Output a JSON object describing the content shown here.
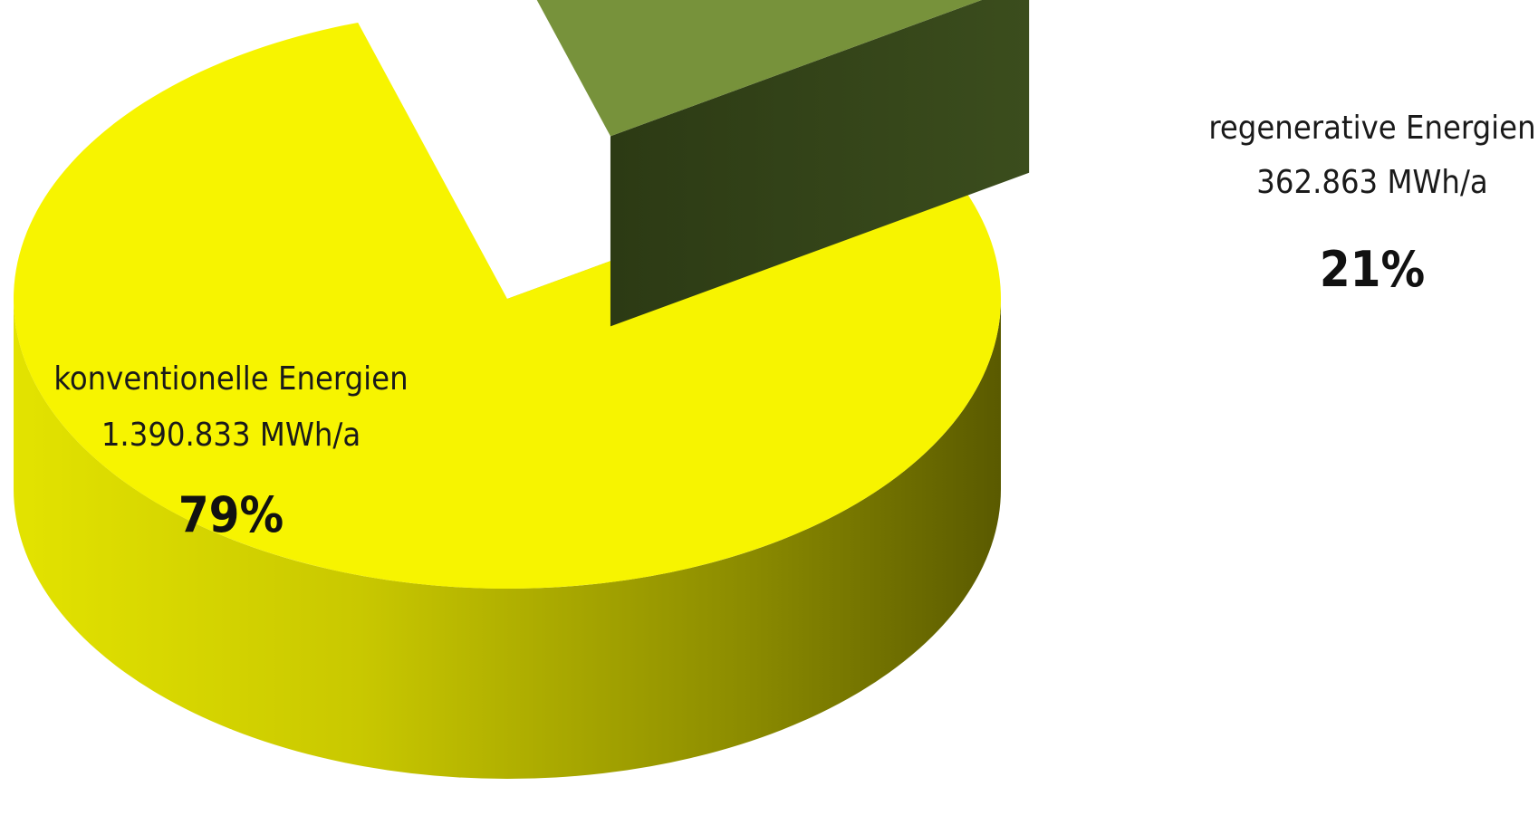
{
  "chart_data": {
    "type": "pie",
    "style": "3d-exploded",
    "unit": "MWh/a",
    "slices": [
      {
        "name": "konventionelle Energien",
        "value_label": "1.390.833 MWh/a",
        "value": 1390833,
        "percent_label": "79%",
        "percent": 79,
        "color": "#f7f400",
        "side_color_light": "#dede00",
        "side_color_dark": "#5e5e00"
      },
      {
        "name": "regenerative Energien",
        "value_label": "362.863 MWh/a",
        "value": 362863,
        "percent_label": "21%",
        "percent": 21,
        "color": "#77923b",
        "side_color_light": "#3d4f1c",
        "side_color_dark": "#263312"
      }
    ],
    "legend": "none",
    "grid": false
  }
}
